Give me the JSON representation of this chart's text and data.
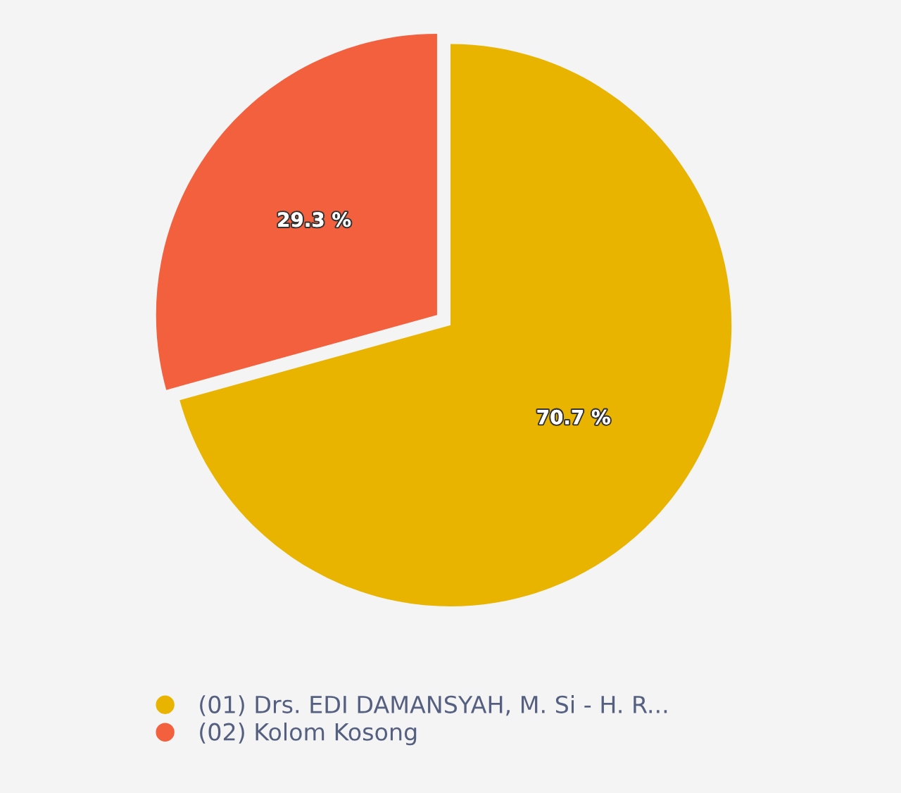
{
  "chart_data": {
    "type": "pie",
    "categories": [
      "(01) Drs. EDI DAMANSYAH, M. Si - H. R...",
      "(02) Kolom Kosong"
    ],
    "values": [
      70.7,
      29.3
    ],
    "colors": [
      "#e8b400",
      "#f2603e"
    ],
    "value_labels": [
      "70.7 %",
      "29.3 %"
    ],
    "legend": "bottom"
  }
}
